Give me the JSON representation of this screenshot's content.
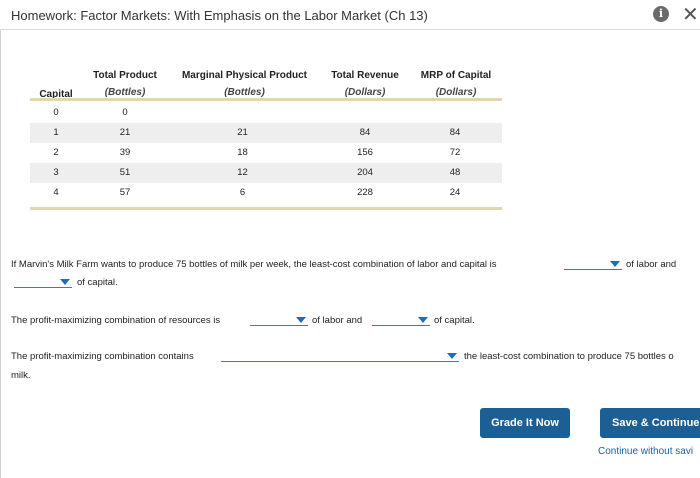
{
  "header": {
    "title": "Homework: Factor Markets: With Emphasis on the Labor Market (Ch 13)",
    "info_icon": "i",
    "close_icon": "✕"
  },
  "table": {
    "headers": [
      {
        "label": "Capital",
        "sub": ""
      },
      {
        "label": "Total Product",
        "sub": "(Bottles)"
      },
      {
        "label": "Marginal Physical Product",
        "sub": "(Bottles)"
      },
      {
        "label": "Total Revenue",
        "sub": "(Dollars)"
      },
      {
        "label": "MRP of Capital",
        "sub": "(Dollars)"
      }
    ],
    "rows": [
      [
        "0",
        "0",
        "",
        "",
        ""
      ],
      [
        "1",
        "21",
        "21",
        "84",
        "84"
      ],
      [
        "2",
        "39",
        "18",
        "156",
        "72"
      ],
      [
        "3",
        "51",
        "12",
        "204",
        "48"
      ],
      [
        "4",
        "57",
        "6",
        "228",
        "24"
      ]
    ]
  },
  "questions": {
    "q1_text": "If Marvin's Milk Farm wants to produce 75 bottles of milk per week, the least-cost combination of labor and capital is",
    "q1_mid": "of labor and",
    "q1_end": "of capital.",
    "q2_text": "The profit-maximizing combination of resources is",
    "q2_mid": "of labor and",
    "q2_end": "of capital.",
    "q3_text": "The profit-maximizing combination contains",
    "q3_end": "the least-cost combination to produce 75 bottles o",
    "q3_end2": "milk."
  },
  "buttons": {
    "grade": "Grade It Now",
    "save": "Save & Continue",
    "continue_link": "Continue without savi"
  }
}
